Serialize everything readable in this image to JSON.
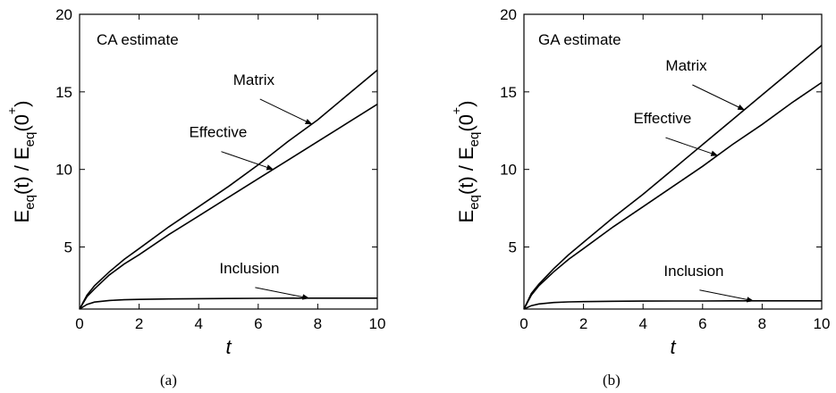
{
  "chart_data": [
    {
      "type": "line",
      "title": "",
      "annotation": "CA estimate",
      "caption": "(a)",
      "xlabel": "t",
      "ylabel": "E_eq(t) / E_eq(0+)",
      "xlim": [
        0,
        10
      ],
      "ylim": [
        1,
        20
      ],
      "xticks": [
        0,
        2,
        4,
        6,
        8,
        10
      ],
      "yticks": [
        5,
        10,
        15,
        20
      ],
      "grid": false,
      "legend": "none",
      "series": [
        {
          "name": "Matrix",
          "x": [
            0,
            0.25,
            0.5,
            1,
            1.5,
            2,
            3,
            4,
            5,
            6,
            7,
            8,
            9,
            10
          ],
          "y": [
            1.0,
            1.9,
            2.5,
            3.4,
            4.2,
            4.9,
            6.3,
            7.6,
            8.9,
            10.3,
            11.8,
            13.2,
            14.8,
            16.4
          ]
        },
        {
          "name": "Effective",
          "x": [
            0,
            0.25,
            0.5,
            1,
            1.5,
            2,
            3,
            4,
            5,
            6,
            7,
            8,
            9,
            10
          ],
          "y": [
            1.0,
            1.8,
            2.3,
            3.2,
            3.9,
            4.5,
            5.8,
            7.0,
            8.2,
            9.4,
            10.6,
            11.8,
            13.0,
            14.2
          ]
        },
        {
          "name": "Inclusion",
          "x": [
            0,
            0.25,
            0.5,
            1,
            1.5,
            2,
            3,
            4,
            5,
            6,
            7,
            8,
            9,
            10
          ],
          "y": [
            1.0,
            1.3,
            1.45,
            1.55,
            1.6,
            1.62,
            1.65,
            1.67,
            1.68,
            1.69,
            1.7,
            1.7,
            1.7,
            1.7
          ]
        }
      ],
      "labels": [
        {
          "text": "Matrix",
          "series": "Matrix",
          "at_x": 7.8
        },
        {
          "text": "Effective",
          "series": "Effective",
          "at_x": 6.5
        },
        {
          "text": "Inclusion",
          "series": "Inclusion",
          "at_x": 7.7
        }
      ]
    },
    {
      "type": "line",
      "title": "",
      "annotation": "GA estimate",
      "caption": "(b)",
      "xlabel": "t",
      "ylabel": "E_eq(t) / E_eq(0+)",
      "xlim": [
        0,
        10
      ],
      "ylim": [
        1,
        20
      ],
      "xticks": [
        0,
        2,
        4,
        6,
        8,
        10
      ],
      "yticks": [
        5,
        10,
        15,
        20
      ],
      "grid": false,
      "legend": "none",
      "series": [
        {
          "name": "Matrix",
          "x": [
            0,
            0.25,
            0.5,
            1,
            1.5,
            2,
            3,
            4,
            5,
            6,
            7,
            8,
            9,
            10
          ],
          "y": [
            1.0,
            2.0,
            2.6,
            3.6,
            4.5,
            5.3,
            6.9,
            8.4,
            10.0,
            11.6,
            13.2,
            14.8,
            16.4,
            18.0
          ]
        },
        {
          "name": "Effective",
          "x": [
            0,
            0.25,
            0.5,
            1,
            1.5,
            2,
            3,
            4,
            5,
            6,
            7,
            8,
            9,
            10
          ],
          "y": [
            1.0,
            1.9,
            2.5,
            3.4,
            4.2,
            4.9,
            6.3,
            7.6,
            8.9,
            10.2,
            11.6,
            12.9,
            14.3,
            15.6
          ]
        },
        {
          "name": "Inclusion",
          "x": [
            0,
            0.25,
            0.5,
            1,
            1.5,
            2,
            3,
            4,
            5,
            6,
            7,
            8,
            9,
            10
          ],
          "y": [
            1.0,
            1.22,
            1.33,
            1.42,
            1.46,
            1.48,
            1.5,
            1.51,
            1.52,
            1.52,
            1.53,
            1.53,
            1.53,
            1.53
          ]
        }
      ],
      "labels": [
        {
          "text": "Matrix",
          "series": "Matrix",
          "at_x": 7.4
        },
        {
          "text": "Effective",
          "series": "Effective",
          "at_x": 6.5
        },
        {
          "text": "Inclusion",
          "series": "Inclusion",
          "at_x": 7.7
        }
      ]
    }
  ]
}
